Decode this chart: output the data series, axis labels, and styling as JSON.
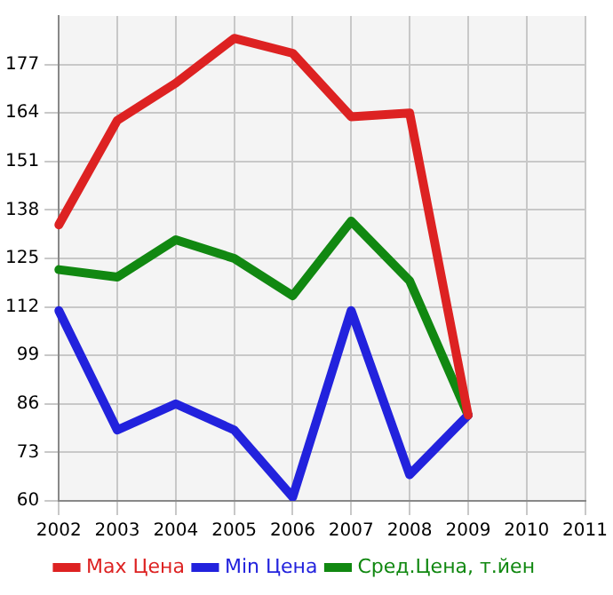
{
  "chart_data": {
    "type": "line",
    "categories": [
      "2002",
      "2003",
      "2004",
      "2005",
      "2006",
      "2007",
      "2008",
      "2009",
      "2010",
      "2011"
    ],
    "series": [
      {
        "name": "Max Цена",
        "color": "#dd2222",
        "values": [
          134,
          162,
          172,
          184,
          180,
          163,
          164,
          83,
          null,
          null
        ]
      },
      {
        "name": "Min Цена",
        "color": "#2222dd",
        "values": [
          111,
          79,
          86,
          79,
          61,
          111,
          67,
          83,
          null,
          null
        ]
      },
      {
        "name": "Сред.Цена, т.йен",
        "color": "#118811",
        "values": [
          122,
          120,
          130,
          125,
          115,
          135,
          119,
          83,
          null,
          null
        ]
      }
    ],
    "ylim": [
      60,
      190
    ],
    "yticks": [
      60,
      73,
      86,
      99,
      112,
      125,
      138,
      151,
      164,
      177
    ],
    "grid": true,
    "legend": "bottom",
    "marker": "none",
    "line_style": "solid"
  }
}
